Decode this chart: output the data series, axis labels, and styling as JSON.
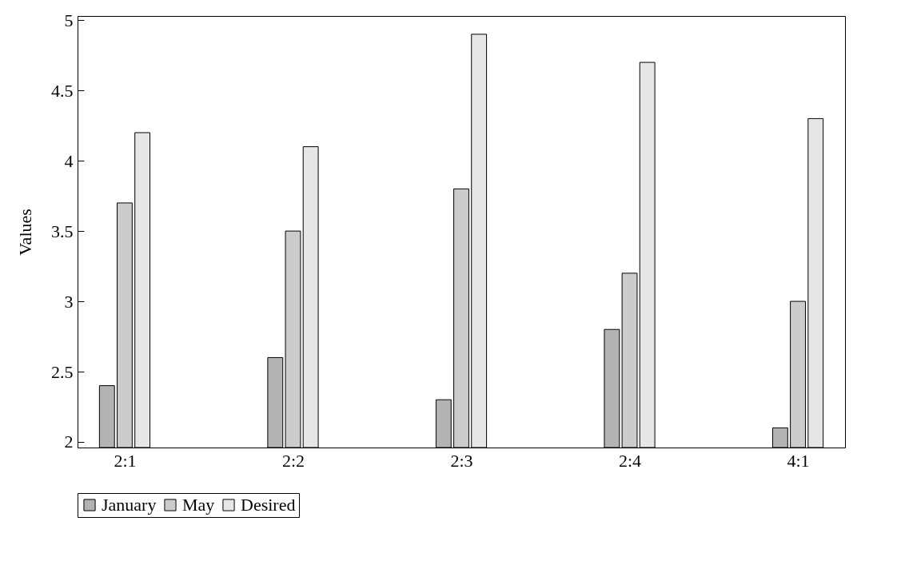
{
  "chart_data": {
    "type": "bar",
    "ylabel": "Values",
    "categories": [
      "2:1",
      "2:2",
      "2:3",
      "2:4",
      "4:1"
    ],
    "series": [
      {
        "name": "January",
        "color": "#b3b3b3",
        "values": [
          2.4,
          2.6,
          2.3,
          2.8,
          2.1
        ]
      },
      {
        "name": "May",
        "color": "#cccccc",
        "values": [
          3.7,
          3.5,
          3.8,
          3.2,
          3.0
        ]
      },
      {
        "name": "Desired",
        "color": "#e6e6e6",
        "values": [
          4.2,
          4.1,
          4.9,
          4.7,
          4.3
        ]
      }
    ],
    "ylim": [
      1.96,
      5.03
    ],
    "yticks": [
      2,
      2.5,
      3,
      3.5,
      4,
      4.5,
      5
    ],
    "grid": false,
    "legend": "bottom"
  }
}
